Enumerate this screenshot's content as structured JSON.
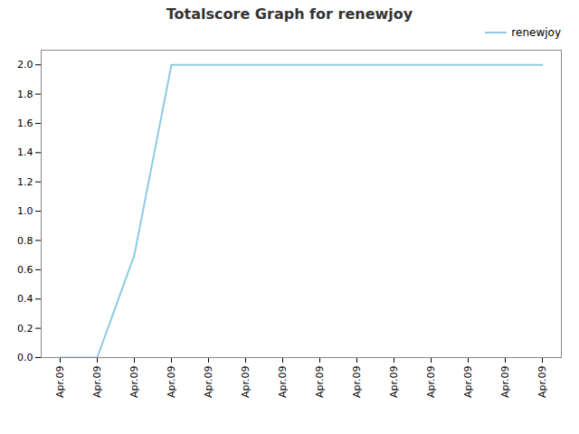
{
  "chart_data": {
    "type": "line",
    "title": "Totalscore Graph for renewjoy",
    "categories": [
      "Apr.09",
      "Apr.09",
      "Apr.09",
      "Apr.09",
      "Apr.09",
      "Apr.09",
      "Apr.09",
      "Apr.09",
      "Apr.09",
      "Apr.09",
      "Apr.09",
      "Apr.09",
      "Apr.09",
      "Apr.09"
    ],
    "series": [
      {
        "name": "renewjoy",
        "color": "#8ecae6",
        "values": [
          0.0,
          0.0,
          0.7,
          2.0,
          2.0,
          2.0,
          2.0,
          2.0,
          2.0,
          2.0,
          2.0,
          2.0,
          2.0,
          2.0
        ]
      }
    ],
    "ylim": [
      0.0,
      2.1
    ],
    "yticks": [
      {
        "value": 0.0,
        "label": "0.0"
      },
      0.2,
      0.4,
      0.6,
      0.8,
      {
        "value": 1.0,
        "label": "1.0"
      },
      1.2,
      1.4,
      1.6,
      1.8,
      {
        "value": 2.0,
        "label": "2.0"
      }
    ],
    "grid": false,
    "legend": "upper right"
  }
}
